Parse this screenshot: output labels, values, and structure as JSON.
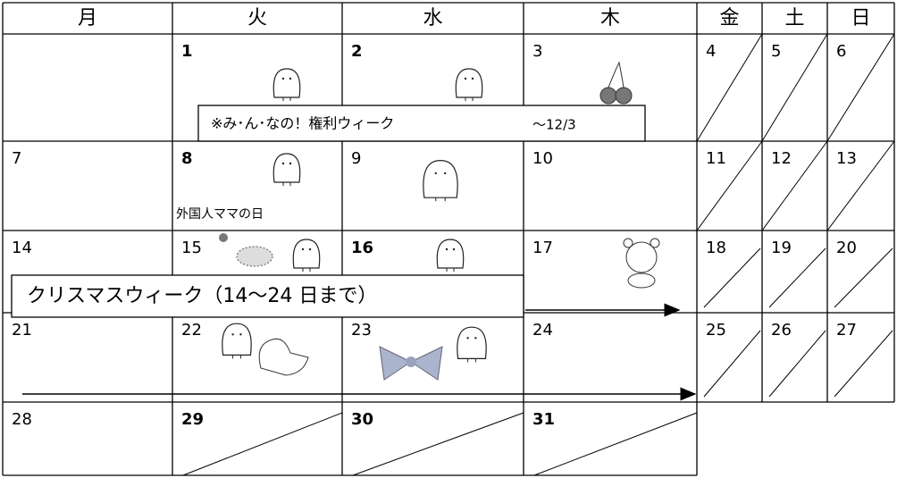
{
  "calendar": {
    "headers": [
      "月",
      "火",
      "水",
      "木",
      "金",
      "土",
      "日"
    ],
    "weeks": [
      [
        null,
        1,
        2,
        3,
        4,
        5,
        6
      ],
      [
        7,
        8,
        9,
        10,
        11,
        12,
        13
      ],
      [
        14,
        15,
        16,
        17,
        18,
        19,
        20
      ],
      [
        21,
        22,
        23,
        24,
        25,
        26,
        27
      ],
      [
        28,
        29,
        30,
        31,
        null,
        null,
        null
      ]
    ],
    "notes": {
      "rights_week": "※み･ん･なの！権利ウィーク",
      "rights_week_end": "～12/3",
      "foreign_mama_day": "外国人ママの日",
      "christmas_week": "クリスマスウィーク（14～24 日まで）"
    }
  }
}
